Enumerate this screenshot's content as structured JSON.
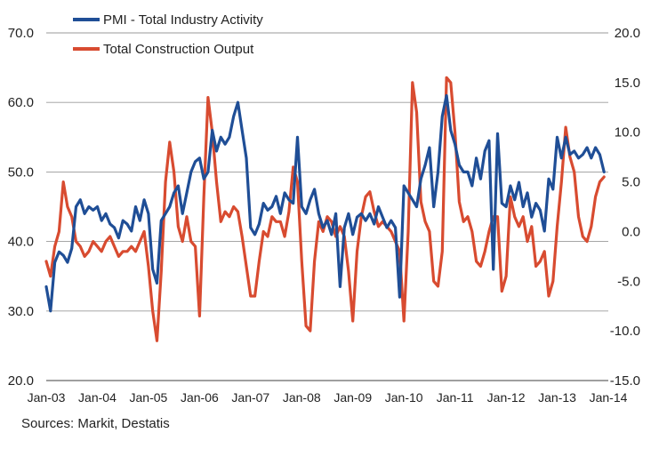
{
  "chart_data": {
    "type": "line",
    "title": "",
    "xlabel": "",
    "ylabel": "",
    "left_axis": {
      "ylim": [
        20,
        70
      ],
      "ticks": [
        "20.0",
        "30.0",
        "40.0",
        "50.0",
        "60.0",
        "70.0"
      ]
    },
    "right_axis": {
      "ylim": [
        -15,
        20
      ],
      "ticks": [
        "-15.0",
        "-10.0",
        "-5.0",
        "0.0",
        "5.0",
        "10.0",
        "15.0",
        "20.0"
      ]
    },
    "x_ticks": [
      "Jan-03",
      "Jan-04",
      "Jan-05",
      "Jan-06",
      "Jan-07",
      "Jan-08",
      "Jan-09",
      "Jan-10",
      "Jan-11",
      "Jan-12",
      "Jan-13",
      "Jan-14"
    ],
    "series": [
      {
        "name": "PMI - Total Industry Activity",
        "axis": "left",
        "color": "#1f4e96",
        "points": [
          [
            "2003-01",
            33.5
          ],
          [
            "2003-02",
            30.0
          ],
          [
            "2003-03",
            37.0
          ],
          [
            "2003-04",
            38.5
          ],
          [
            "2003-05",
            38.0
          ],
          [
            "2003-06",
            37.0
          ],
          [
            "2003-07",
            39.0
          ],
          [
            "2003-08",
            45.0
          ],
          [
            "2003-09",
            46.0
          ],
          [
            "2003-10",
            44.0
          ],
          [
            "2003-11",
            45.0
          ],
          [
            "2003-12",
            44.5
          ],
          [
            "2004-01",
            45.0
          ],
          [
            "2004-02",
            43.0
          ],
          [
            "2004-03",
            44.0
          ],
          [
            "2004-04",
            42.5
          ],
          [
            "2004-05",
            42.0
          ],
          [
            "2004-06",
            40.5
          ],
          [
            "2004-07",
            43.0
          ],
          [
            "2004-08",
            42.5
          ],
          [
            "2004-09",
            41.5
          ],
          [
            "2004-10",
            45.0
          ],
          [
            "2004-11",
            43.0
          ],
          [
            "2004-12",
            46.0
          ],
          [
            "2005-01",
            44.0
          ],
          [
            "2005-02",
            36.0
          ],
          [
            "2005-03",
            34.0
          ],
          [
            "2005-04",
            43.0
          ],
          [
            "2005-05",
            44.0
          ],
          [
            "2005-06",
            45.0
          ],
          [
            "2005-07",
            47.0
          ],
          [
            "2005-08",
            48.0
          ],
          [
            "2005-09",
            44.0
          ],
          [
            "2005-10",
            47.0
          ],
          [
            "2005-11",
            50.0
          ],
          [
            "2005-12",
            51.5
          ],
          [
            "2006-01",
            52.0
          ],
          [
            "2006-02",
            49.0
          ],
          [
            "2006-03",
            50.0
          ],
          [
            "2006-04",
            56.0
          ],
          [
            "2006-05",
            53.0
          ],
          [
            "2006-06",
            55.0
          ],
          [
            "2006-07",
            54.0
          ],
          [
            "2006-08",
            55.0
          ],
          [
            "2006-09",
            58.0
          ],
          [
            "2006-10",
            60.0
          ],
          [
            "2006-11",
            56.0
          ],
          [
            "2006-12",
            52.0
          ],
          [
            "2007-01",
            42.0
          ],
          [
            "2007-02",
            41.0
          ],
          [
            "2007-03",
            42.5
          ],
          [
            "2007-04",
            45.5
          ],
          [
            "2007-05",
            44.5
          ],
          [
            "2007-06",
            45.0
          ],
          [
            "2007-07",
            46.5
          ],
          [
            "2007-08",
            44.0
          ],
          [
            "2007-09",
            47.0
          ],
          [
            "2007-10",
            46.0
          ],
          [
            "2007-11",
            45.5
          ],
          [
            "2007-12",
            55.0
          ],
          [
            "2008-01",
            45.0
          ],
          [
            "2008-02",
            44.0
          ],
          [
            "2008-03",
            46.0
          ],
          [
            "2008-04",
            47.5
          ],
          [
            "2008-05",
            44.0
          ],
          [
            "2008-06",
            42.0
          ],
          [
            "2008-07",
            43.0
          ],
          [
            "2008-08",
            41.0
          ],
          [
            "2008-09",
            44.0
          ],
          [
            "2008-10",
            33.5
          ],
          [
            "2008-11",
            42.0
          ],
          [
            "2008-12",
            44.0
          ],
          [
            "2009-01",
            41.0
          ],
          [
            "2009-02",
            43.5
          ],
          [
            "2009-03",
            44.0
          ],
          [
            "2009-04",
            43.0
          ],
          [
            "2009-05",
            44.0
          ],
          [
            "2009-06",
            42.5
          ],
          [
            "2009-07",
            45.0
          ],
          [
            "2009-08",
            43.5
          ],
          [
            "2009-09",
            42.0
          ],
          [
            "2009-10",
            43.0
          ],
          [
            "2009-11",
            42.0
          ],
          [
            "2009-12",
            32.0
          ],
          [
            "2010-01",
            48.0
          ],
          [
            "2010-02",
            47.0
          ],
          [
            "2010-03",
            46.0
          ],
          [
            "2010-04",
            45.0
          ],
          [
            "2010-05",
            49.0
          ],
          [
            "2010-06",
            51.0
          ],
          [
            "2010-07",
            53.5
          ],
          [
            "2010-08",
            45.0
          ],
          [
            "2010-09",
            50.0
          ],
          [
            "2010-10",
            58.0
          ],
          [
            "2010-11",
            61.0
          ],
          [
            "2010-12",
            56.0
          ],
          [
            "2011-01",
            54.0
          ],
          [
            "2011-02",
            51.0
          ],
          [
            "2011-03",
            50.0
          ],
          [
            "2011-04",
            50.0
          ],
          [
            "2011-05",
            48.0
          ],
          [
            "2011-06",
            52.0
          ],
          [
            "2011-07",
            49.0
          ],
          [
            "2011-08",
            53.0
          ],
          [
            "2011-09",
            54.5
          ],
          [
            "2011-10",
            36.0
          ],
          [
            "2011-11",
            55.5
          ],
          [
            "2011-12",
            45.5
          ],
          [
            "2012-01",
            45.0
          ],
          [
            "2012-02",
            48.0
          ],
          [
            "2012-03",
            46.0
          ],
          [
            "2012-04",
            48.5
          ],
          [
            "2012-05",
            45.0
          ],
          [
            "2012-06",
            47.0
          ],
          [
            "2012-07",
            43.5
          ],
          [
            "2012-08",
            45.5
          ],
          [
            "2012-09",
            44.5
          ],
          [
            "2012-10",
            41.5
          ],
          [
            "2012-11",
            49.0
          ],
          [
            "2012-12",
            47.5
          ],
          [
            "2013-01",
            55.0
          ],
          [
            "2013-02",
            52.0
          ],
          [
            "2013-03",
            55.0
          ],
          [
            "2013-04",
            52.5
          ],
          [
            "2013-05",
            53.0
          ],
          [
            "2013-06",
            52.0
          ],
          [
            "2013-07",
            52.5
          ],
          [
            "2013-08",
            53.5
          ],
          [
            "2013-09",
            52.0
          ],
          [
            "2013-10",
            53.5
          ],
          [
            "2013-11",
            52.5
          ],
          [
            "2013-12",
            50.0
          ]
        ]
      },
      {
        "name": "Total Construction Output",
        "axis": "right",
        "color": "#d84b30",
        "points": [
          [
            "2003-01",
            -3.0
          ],
          [
            "2003-02",
            -4.5
          ],
          [
            "2003-03",
            -1.5
          ],
          [
            "2003-04",
            0.0
          ],
          [
            "2003-05",
            5.0
          ],
          [
            "2003-06",
            2.5
          ],
          [
            "2003-07",
            1.5
          ],
          [
            "2003-08",
            -1.0
          ],
          [
            "2003-09",
            -1.5
          ],
          [
            "2003-10",
            -2.5
          ],
          [
            "2003-11",
            -2.0
          ],
          [
            "2003-12",
            -1.0
          ],
          [
            "2004-01",
            -1.5
          ],
          [
            "2004-02",
            -2.0
          ],
          [
            "2004-03",
            -1.0
          ],
          [
            "2004-04",
            -0.5
          ],
          [
            "2004-05",
            -1.5
          ],
          [
            "2004-06",
            -2.5
          ],
          [
            "2004-07",
            -2.0
          ],
          [
            "2004-08",
            -2.0
          ],
          [
            "2004-09",
            -1.5
          ],
          [
            "2004-10",
            -2.0
          ],
          [
            "2004-11",
            -1.0
          ],
          [
            "2004-12",
            0.0
          ],
          [
            "2005-01",
            -3.5
          ],
          [
            "2005-02",
            -8.0
          ],
          [
            "2005-03",
            -11.0
          ],
          [
            "2005-04",
            -4.0
          ],
          [
            "2005-05",
            5.0
          ],
          [
            "2005-06",
            9.0
          ],
          [
            "2005-07",
            6.0
          ],
          [
            "2005-08",
            0.5
          ],
          [
            "2005-09",
            -1.0
          ],
          [
            "2005-10",
            1.5
          ],
          [
            "2005-11",
            -1.0
          ],
          [
            "2005-12",
            -1.5
          ],
          [
            "2006-01",
            -8.5
          ],
          [
            "2006-02",
            3.5
          ],
          [
            "2006-03",
            13.5
          ],
          [
            "2006-04",
            10.0
          ],
          [
            "2006-05",
            5.0
          ],
          [
            "2006-06",
            1.0
          ],
          [
            "2006-07",
            2.0
          ],
          [
            "2006-08",
            1.5
          ],
          [
            "2006-09",
            2.5
          ],
          [
            "2006-10",
            2.0
          ],
          [
            "2006-11",
            -0.5
          ],
          [
            "2006-12",
            -3.5
          ],
          [
            "2007-01",
            -6.5
          ],
          [
            "2007-02",
            -6.5
          ],
          [
            "2007-03",
            -3.0
          ],
          [
            "2007-04",
            0.0
          ],
          [
            "2007-05",
            -0.5
          ],
          [
            "2007-06",
            1.5
          ],
          [
            "2007-07",
            1.0
          ],
          [
            "2007-08",
            1.0
          ],
          [
            "2007-09",
            -0.5
          ],
          [
            "2007-10",
            2.0
          ],
          [
            "2007-11",
            6.5
          ],
          [
            "2007-12",
            5.0
          ],
          [
            "2008-01",
            -3.0
          ],
          [
            "2008-02",
            -9.5
          ],
          [
            "2008-03",
            -10.0
          ],
          [
            "2008-04",
            -3.0
          ],
          [
            "2008-05",
            1.0
          ],
          [
            "2008-06",
            0.0
          ],
          [
            "2008-07",
            1.5
          ],
          [
            "2008-08",
            1.0
          ],
          [
            "2008-09",
            -0.5
          ],
          [
            "2008-10",
            0.5
          ],
          [
            "2008-11",
            -0.5
          ],
          [
            "2008-12",
            -4.0
          ],
          [
            "2009-01",
            -9.0
          ],
          [
            "2009-02",
            -2.0
          ],
          [
            "2009-03",
            1.5
          ],
          [
            "2009-04",
            3.5
          ],
          [
            "2009-05",
            4.0
          ],
          [
            "2009-06",
            2.0
          ],
          [
            "2009-07",
            0.5
          ],
          [
            "2009-08",
            1.0
          ],
          [
            "2009-09",
            0.5
          ],
          [
            "2009-10",
            0.0
          ],
          [
            "2009-11",
            -1.0
          ],
          [
            "2009-12",
            -2.0
          ],
          [
            "2010-01",
            -9.0
          ],
          [
            "2010-02",
            0.0
          ],
          [
            "2010-03",
            15.0
          ],
          [
            "2010-04",
            12.0
          ],
          [
            "2010-05",
            3.0
          ],
          [
            "2010-06",
            1.0
          ],
          [
            "2010-07",
            0.0
          ],
          [
            "2010-08",
            -5.0
          ],
          [
            "2010-09",
            -5.5
          ],
          [
            "2010-10",
            -2.0
          ],
          [
            "2010-11",
            15.5
          ],
          [
            "2010-12",
            15.0
          ],
          [
            "2011-01",
            10.0
          ],
          [
            "2011-02",
            3.0
          ],
          [
            "2011-03",
            1.0
          ],
          [
            "2011-04",
            1.5
          ],
          [
            "2011-05",
            0.0
          ],
          [
            "2011-06",
            -3.0
          ],
          [
            "2011-07",
            -3.5
          ],
          [
            "2011-08",
            -2.0
          ],
          [
            "2011-09",
            0.0
          ],
          [
            "2011-10",
            1.5
          ],
          [
            "2011-11",
            1.5
          ],
          [
            "2011-12",
            -6.0
          ],
          [
            "2012-01",
            -4.5
          ],
          [
            "2012-02",
            3.5
          ],
          [
            "2012-03",
            1.5
          ],
          [
            "2012-04",
            0.5
          ],
          [
            "2012-05",
            1.5
          ],
          [
            "2012-06",
            -1.0
          ],
          [
            "2012-07",
            0.5
          ],
          [
            "2012-08",
            -3.5
          ],
          [
            "2012-09",
            -3.0
          ],
          [
            "2012-10",
            -2.0
          ],
          [
            "2012-11",
            -6.5
          ],
          [
            "2012-12",
            -5.0
          ],
          [
            "2013-01",
            0.5
          ],
          [
            "2013-02",
            5.0
          ],
          [
            "2013-03",
            10.5
          ],
          [
            "2013-04",
            7.5
          ],
          [
            "2013-05",
            6.0
          ],
          [
            "2013-06",
            1.5
          ],
          [
            "2013-07",
            -0.5
          ],
          [
            "2013-08",
            -1.0
          ],
          [
            "2013-09",
            0.5
          ],
          [
            "2013-10",
            3.5
          ],
          [
            "2013-11",
            5.0
          ],
          [
            "2013-12",
            5.5
          ]
        ]
      }
    ],
    "grid": true,
    "legend": "top-left"
  },
  "source_note": "Sources: Markit, Destatis"
}
